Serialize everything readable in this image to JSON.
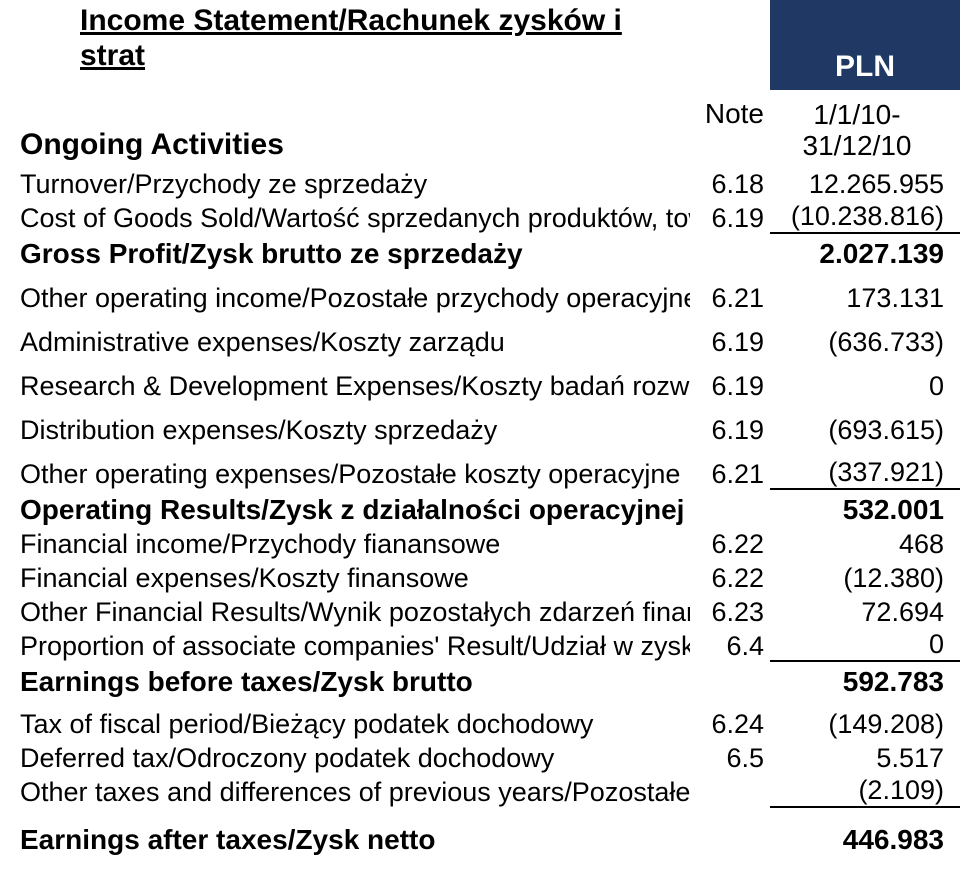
{
  "colors": {
    "pln_band": "#1f3864",
    "pln_text": "#ffffff",
    "text": "#000000",
    "bg": "#ffffff",
    "border": "#000000"
  },
  "title": "Income Statement/Rachunek zysków i strat",
  "pln_label": "PLN",
  "header": {
    "activities": "Ongoing Activities",
    "note": "Note",
    "period": "1/1/10-\n31/12/10"
  },
  "rows": [
    {
      "label": "Turnover/Przychody ze sprzedaży",
      "note": "6.18",
      "val": "12.265.955",
      "bold": false,
      "border": false,
      "space": 0
    },
    {
      "label": "Cost of Goods Sold/Wartość sprzedanych produktów, towarów",
      "note": "6.19",
      "val": "(10.238.816)",
      "bold": false,
      "border": true,
      "space": 0
    },
    {
      "label": "Gross Profit/Zysk brutto ze sprzedaży",
      "note": "",
      "val": "2.027.139",
      "bold": true,
      "border": false,
      "space": 0
    },
    {
      "label": "Other operating income/Pozostałe przychody operacyjne",
      "note": "6.21",
      "val": "173.131",
      "bold": false,
      "border": false,
      "space": 10
    },
    {
      "label": "Administrative expenses/Koszty zarządu",
      "note": "6.19",
      "val": "(636.733)",
      "bold": false,
      "border": false,
      "space": 10
    },
    {
      "label": "Research & Development Expenses/Koszty badań rozwoju",
      "note": "6.19",
      "val": "0",
      "bold": false,
      "border": false,
      "space": 10
    },
    {
      "label": "Distribution expenses/Koszty sprzedaży",
      "note": "6.19",
      "val": "(693.615)",
      "bold": false,
      "border": false,
      "space": 10
    },
    {
      "label": "Other operating expenses/Pozostałe koszty operacyjne",
      "note": "6.21",
      "val": "(337.921)",
      "bold": false,
      "border": true,
      "space": 10
    },
    {
      "label": "Operating Results/Zysk z działalności operacyjnej",
      "note": "",
      "val": "532.001",
      "bold": true,
      "border": false,
      "space": 0
    },
    {
      "label": "Financial income/Przychody fianansowe",
      "note": "6.22",
      "val": "468",
      "bold": false,
      "border": false,
      "space": 0
    },
    {
      "label": "Financial expenses/Koszty finansowe",
      "note": "6.22",
      "val": "(12.380)",
      "bold": false,
      "border": false,
      "space": 0
    },
    {
      "label": "Other Financial Results/Wynik pozostałych zdarzeń finansowych",
      "note": "6.23",
      "val": "72.694",
      "bold": false,
      "border": false,
      "space": 0
    },
    {
      "label": "Proportion of associate companies' Result/Udział w zyskach",
      "note": "6.4",
      "val": "0",
      "bold": false,
      "border": true,
      "space": 0
    },
    {
      "label": "Earnings before taxes/Zysk brutto",
      "note": "",
      "val": "592.783",
      "bold": true,
      "border": false,
      "space": 0
    },
    {
      "label": "Tax of fiscal period/Bieżący podatek dochodowy",
      "note": "6.24",
      "val": "(149.208)",
      "bold": false,
      "border": false,
      "space": 8
    },
    {
      "label": "Deferred tax/Odroczony podatek dochodowy",
      "note": "6.5",
      "val": "5.517",
      "bold": false,
      "border": false,
      "space": 0
    },
    {
      "label": "Other taxes and differences of previous years/Pozostałe podatki",
      "note": "",
      "val": "(2.109)",
      "bold": false,
      "border": true,
      "space": 0
    },
    {
      "label": "Earnings after taxes/Zysk netto",
      "note": "",
      "val": "446.983",
      "bold": true,
      "border": false,
      "space": 12
    }
  ]
}
